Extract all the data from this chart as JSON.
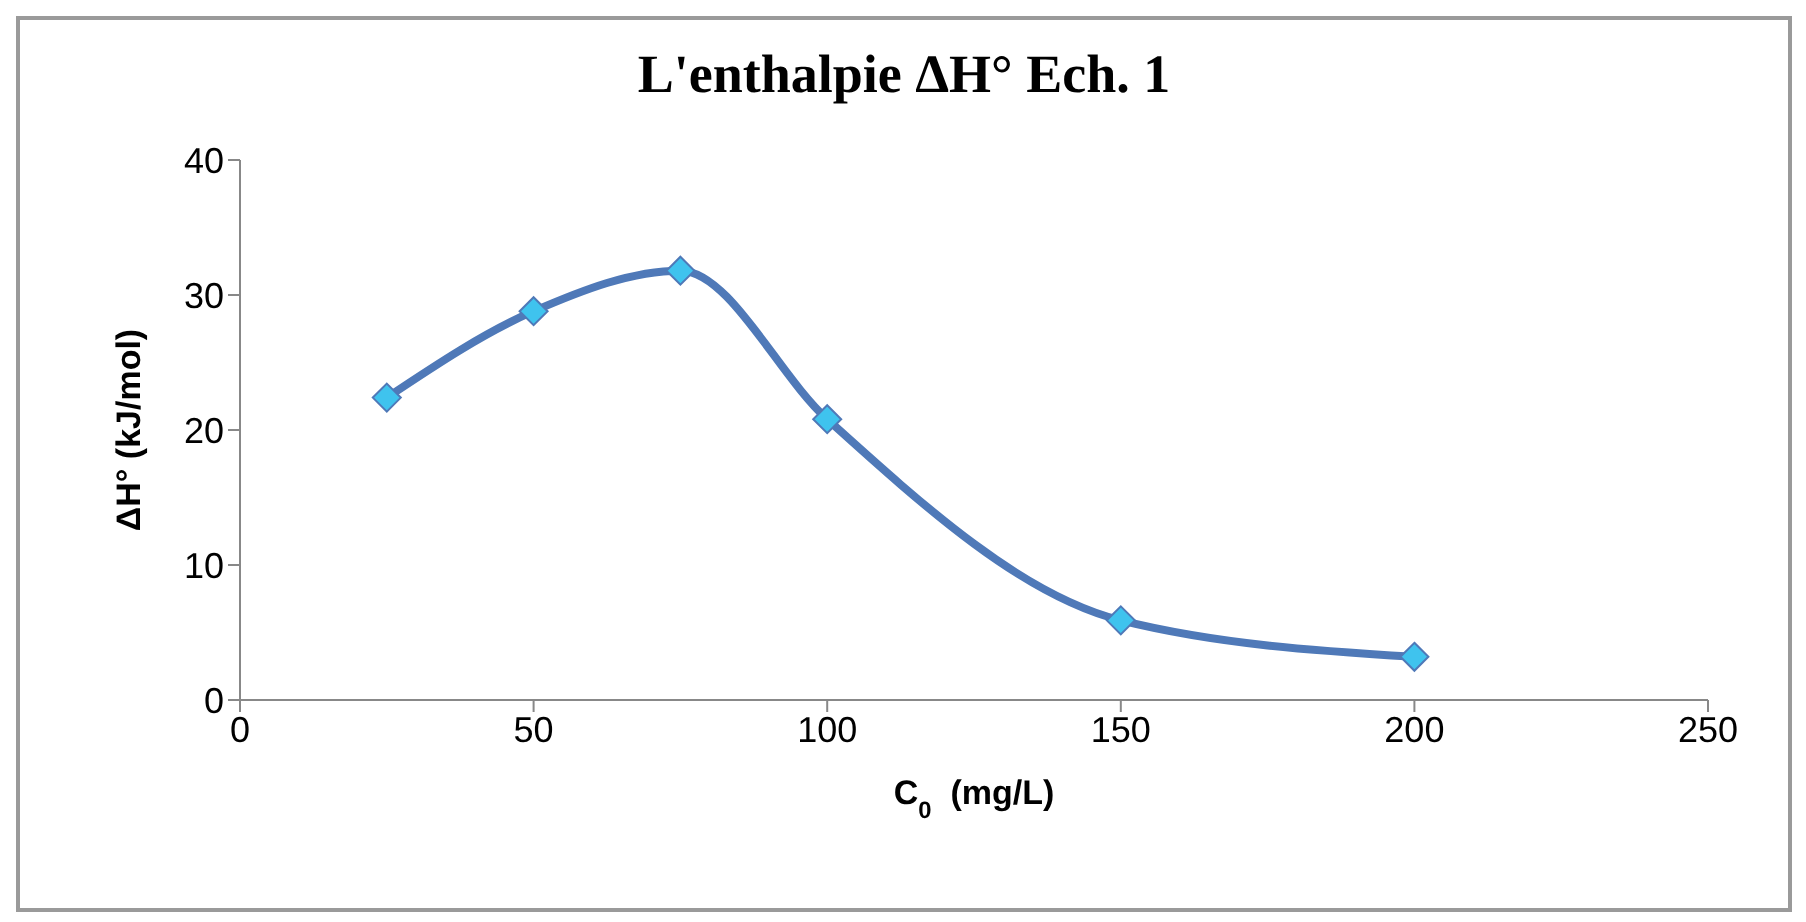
{
  "chart_data": {
    "type": "line",
    "title": "L'enthalpie ΔH° Ech. 1",
    "xlabel": "C$_{0}$  (mg/L)",
    "ylabel": "ΔH° (kJ/mol)",
    "x": [
      25,
      50,
      75,
      100,
      150,
      200
    ],
    "series": [
      {
        "color": "#4f79b8",
        "values": [
          22.4,
          28.8,
          31.8,
          20.8,
          5.9,
          3.2
        ]
      }
    ],
    "xlim": [
      0,
      250
    ],
    "xticks": [
      0,
      50,
      100,
      150,
      200,
      250
    ],
    "ylim": [
      0,
      40
    ],
    "yticks": [
      0,
      10,
      20,
      30,
      40
    ],
    "grid": false,
    "legend": false,
    "marker": "diamond",
    "line_style": "solid"
  }
}
